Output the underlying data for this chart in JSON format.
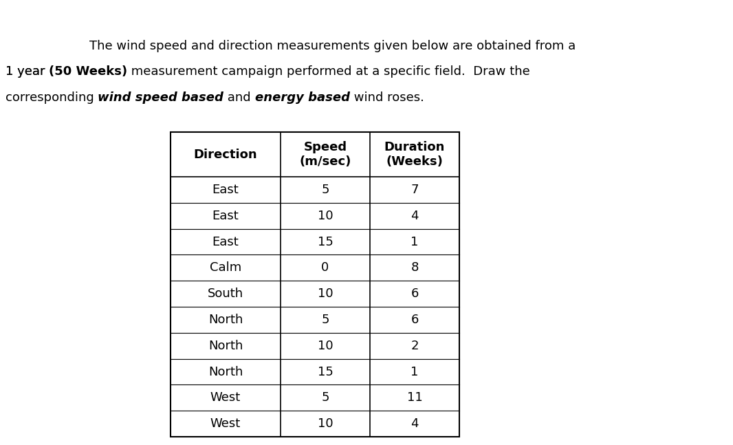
{
  "col_headers": [
    "Direction",
    "Speed\n(m/sec)",
    "Duration\n(Weeks)"
  ],
  "rows": [
    [
      "East",
      "5",
      "7"
    ],
    [
      "East",
      "10",
      "4"
    ],
    [
      "East",
      "15",
      "1"
    ],
    [
      "Calm",
      "0",
      "8"
    ],
    [
      "South",
      "10",
      "6"
    ],
    [
      "North",
      "5",
      "6"
    ],
    [
      "North",
      "10",
      "2"
    ],
    [
      "North",
      "15",
      "1"
    ],
    [
      "West",
      "5",
      "11"
    ],
    [
      "West",
      "10",
      "4"
    ]
  ],
  "bg_color": "#ffffff",
  "text_color": "#000000",
  "font_size_title": 13.0,
  "font_size_table": 13.0,
  "title_font_family": "DejaVu Sans",
  "table_font_family": "DejaVu Sans"
}
